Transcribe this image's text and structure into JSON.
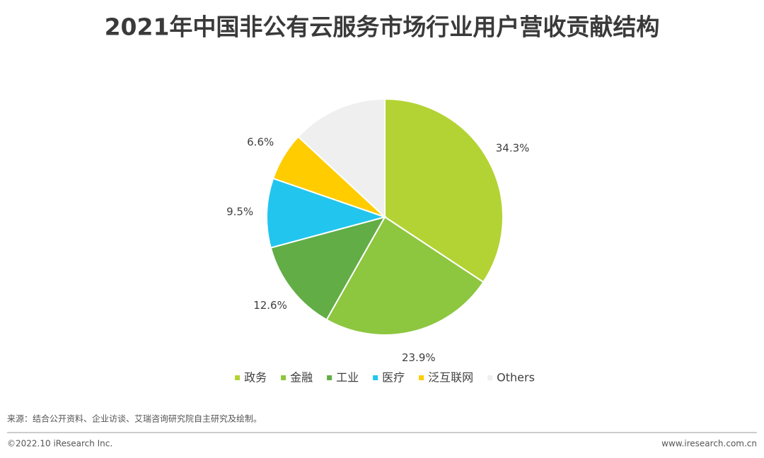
{
  "chart_data": {
    "type": "pie",
    "title": "2021年中国非公有云服务市场行业用户营收贡献结构",
    "categories": [
      "政务",
      "金融",
      "工业",
      "医疗",
      "泛互联网",
      "Others"
    ],
    "values": [
      34.3,
      23.9,
      12.6,
      9.5,
      6.6,
      13.1
    ],
    "value_labels": [
      "34.3%",
      "23.9%",
      "12.6%",
      "9.5%",
      "6.6%",
      null
    ],
    "colors": [
      "#b3d334",
      "#8dc63f",
      "#62ad46",
      "#22c5ee",
      "#ffcc00",
      "#efefef"
    ],
    "legend": "bottom"
  },
  "source": "来源：结合公开资料、企业访谈、艾瑞咨询研究院自主研究及绘制。",
  "footer": {
    "left": "©2022.10 iResearch Inc.",
    "right": "www.iresearch.com.cn"
  }
}
